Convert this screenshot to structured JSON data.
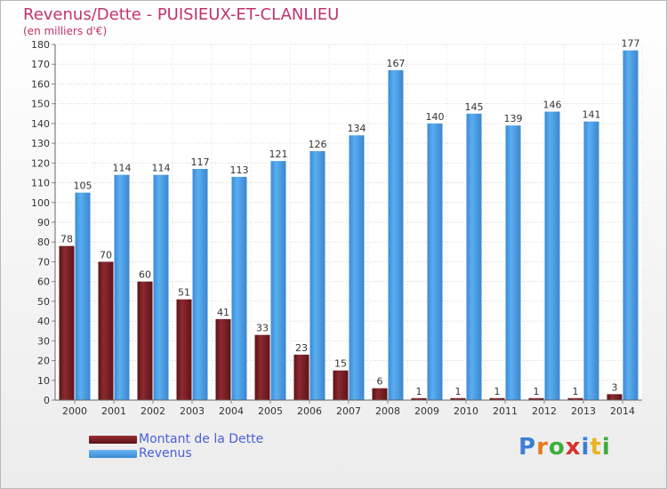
{
  "header": {
    "title": "Revenus/Dette - PUISIEUX-ET-CLANLIEU",
    "subtitle": "(en milliers d'€)"
  },
  "legend": {
    "items": [
      {
        "label": "Montant de la Dette",
        "color": "#7a1f24"
      },
      {
        "label": "Revenus",
        "color": "#4a9ee6"
      }
    ]
  },
  "logo": {
    "text": "Proxiti",
    "letters": [
      {
        "char": "P",
        "color": "#3b7fd4"
      },
      {
        "char": "r",
        "color": "#e8781e"
      },
      {
        "char": "o",
        "color": "#3cae3c"
      },
      {
        "char": "x",
        "color": "#d8312e"
      },
      {
        "char": "i",
        "color": "#3b7fd4"
      },
      {
        "char": "t",
        "color": "#e8b51e"
      },
      {
        "char": "i",
        "color": "#3cae3c"
      }
    ]
  },
  "chart_data": {
    "type": "bar",
    "categories": [
      "2000",
      "2001",
      "2002",
      "2003",
      "2004",
      "2005",
      "2006",
      "2007",
      "2008",
      "2009",
      "2010",
      "2011",
      "2012",
      "2013",
      "2014"
    ],
    "series": [
      {
        "name": "Montant de la Dette",
        "color": "#7a1f24",
        "values": [
          78,
          70,
          60,
          51,
          41,
          33,
          23,
          15,
          6,
          1,
          1,
          1,
          1,
          1,
          3
        ]
      },
      {
        "name": "Revenus",
        "color": "#4a9ee6",
        "values": [
          105,
          114,
          114,
          117,
          113,
          121,
          126,
          134,
          167,
          140,
          145,
          139,
          146,
          141,
          177
        ]
      }
    ],
    "title": "Revenus/Dette - PUISIEUX-ET-CLANLIEU",
    "subtitle": "(en milliers d'€)",
    "xlabel": "",
    "ylabel": "",
    "ylim": [
      0,
      180
    ],
    "yticks": [
      0,
      10,
      20,
      30,
      40,
      50,
      60,
      70,
      80,
      90,
      100,
      110,
      120,
      130,
      140,
      150,
      160,
      170,
      180
    ],
    "grid": true,
    "legend_position": "bottom-left"
  }
}
